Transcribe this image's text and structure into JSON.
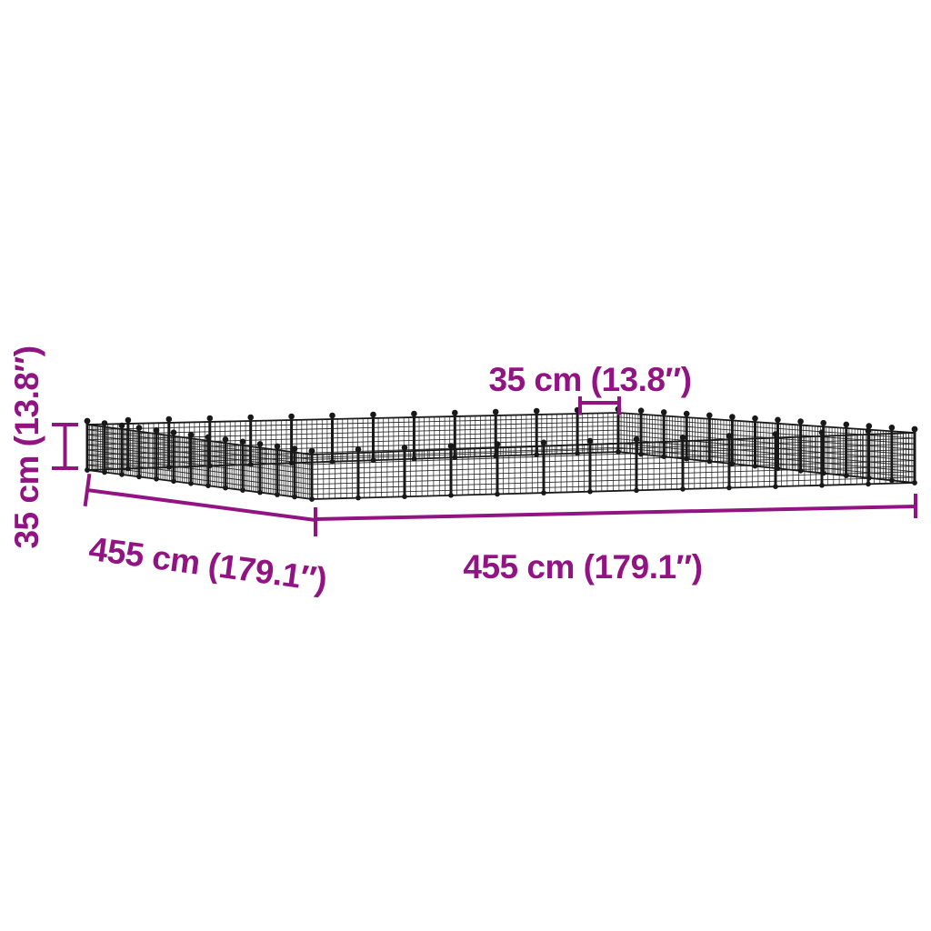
{
  "figure": {
    "type": "product-dimension-diagram",
    "subject": "black wire mesh pet playpen enclosure shown in perspective",
    "accent_color": "#911482",
    "mesh_color": "#181818",
    "background_color": "#ffffff",
    "panels_per_side": 13
  },
  "dimensions": {
    "panel_width": {
      "label": "35 cm (13.8″)"
    },
    "height": {
      "label": "35 cm (13.8″)"
    },
    "side_left": {
      "label": "455 cm (179.1″)"
    },
    "side_front": {
      "label": "455 cm (179.1″)"
    }
  }
}
